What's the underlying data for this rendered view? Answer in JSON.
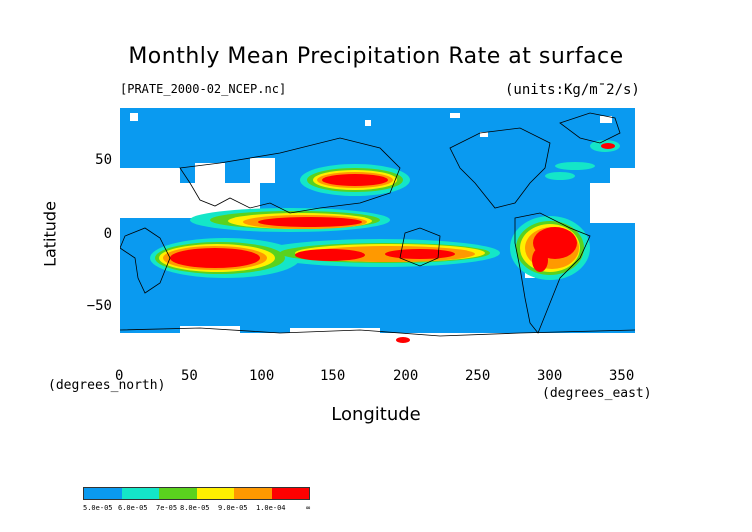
{
  "title": "Monthly Mean Precipitation Rate at surface",
  "file_label": "[PRATE_2000-02_NCEP.nc]",
  "units_label": "(units:Kg/m¯2/s)",
  "y_axis": {
    "label": "Latitude",
    "note": "(degrees_north)",
    "ticks": [
      "50",
      "0",
      "−50"
    ]
  },
  "x_axis": {
    "label": "Longitude",
    "note": "(degrees_east)",
    "ticks": [
      "0",
      "50",
      "100",
      "150",
      "200",
      "250",
      "300",
      "350"
    ]
  },
  "colorbar": {
    "colors": [
      "#0a9af0",
      "#14e6c8",
      "#5ad21e",
      "#fff000",
      "#ff9900",
      "#ff0000"
    ],
    "labels": [
      "5.0e-05",
      "6.0e-05",
      "7e-05",
      "8.0e-05",
      "9.0e-05",
      "1.0e-04",
      "∞"
    ]
  },
  "colors": {
    "ocean_base": "#0a9af0",
    "missing": "#ffffff",
    "heavy": "#ff0000",
    "coast": "#000000"
  }
}
